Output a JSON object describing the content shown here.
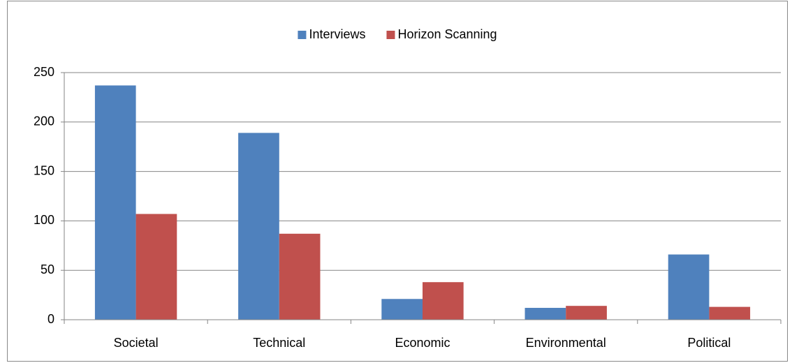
{
  "chart_data": {
    "type": "bar",
    "categories": [
      "Societal",
      "Technical",
      "Economic",
      "Environmental",
      "Political"
    ],
    "series": [
      {
        "name": "Interviews",
        "color": "#4f81bd",
        "values": [
          237,
          189,
          21,
          12,
          66
        ]
      },
      {
        "name": "Horizon Scanning",
        "color": "#c0504d",
        "values": [
          107,
          87,
          38,
          14,
          13
        ]
      }
    ],
    "ylim": [
      0,
      250
    ],
    "yticks": [
      0,
      50,
      100,
      150,
      200,
      250
    ],
    "grid": true,
    "legend": "top"
  }
}
